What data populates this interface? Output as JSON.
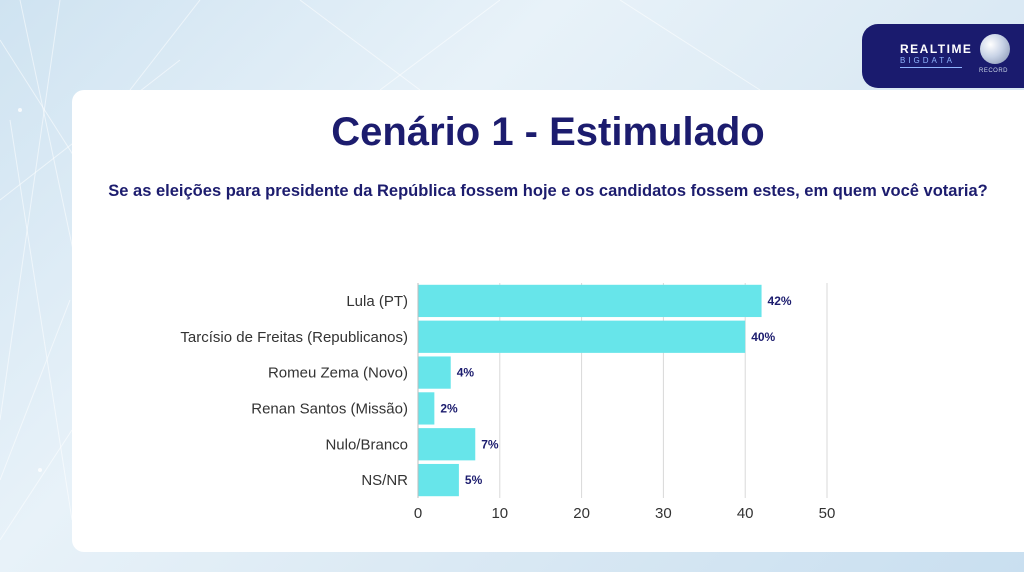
{
  "title": "Cenário 1 - Estimulado",
  "question": "Se as eleições para presidente da República fossem hoje e os candidatos fossem estes, em quem você votaria?",
  "brand": {
    "line1": "REALTIME",
    "line2": "BIGDATA",
    "line3": "RECORD"
  },
  "colors": {
    "bar": "#67e5ea",
    "navy": "#1c1c6e",
    "grid": "#d9d9d9"
  },
  "chart_data": {
    "type": "bar",
    "orientation": "horizontal",
    "categories": [
      "Lula (PT)",
      "Tarcísio de Freitas (Republicanos)",
      "Romeu Zema (Novo)",
      "Renan Santos (Missão)",
      "Nulo/Branco",
      "NS/NR"
    ],
    "values": [
      42,
      40,
      4,
      2,
      7,
      5
    ],
    "value_labels": [
      "42%",
      "40%",
      "4%",
      "2%",
      "7%",
      "5%"
    ],
    "xlim": [
      0,
      50
    ],
    "xticks": [
      0,
      10,
      20,
      30,
      40,
      50
    ],
    "grid": true,
    "xlabel": "",
    "ylabel": ""
  }
}
